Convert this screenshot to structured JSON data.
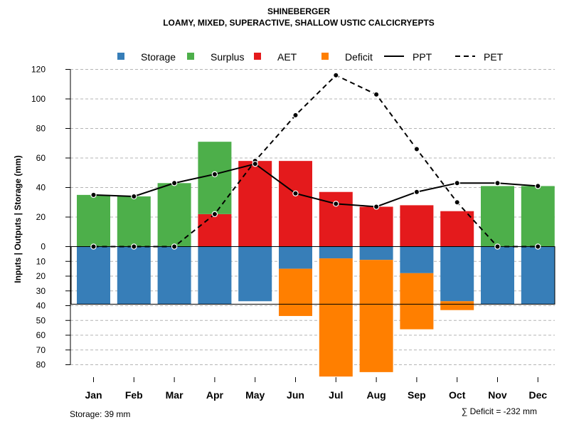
{
  "chart_data": {
    "type": "bar",
    "title": "SHINEBERGER",
    "subtitle": "LOAMY, MIXED, SUPERACTIVE, SHALLOW USTIC CALCICRYEPTS",
    "ylabel": "Inputs | Outputs | Storage    (mm)",
    "ylim": [
      -88,
      120
    ],
    "y_ticks_above": [
      0,
      20,
      40,
      60,
      80,
      100,
      120
    ],
    "y_ticks_below": [
      10,
      20,
      30,
      40,
      50,
      60,
      70,
      80
    ],
    "categories": [
      "Jan",
      "Feb",
      "Mar",
      "Apr",
      "May",
      "Jun",
      "Jul",
      "Aug",
      "Sep",
      "Oct",
      "Nov",
      "Dec"
    ],
    "legend": [
      {
        "label": "Storage",
        "color": "#377eb8",
        "kind": "box"
      },
      {
        "label": "Surplus",
        "color": "#4daf4a",
        "kind": "box"
      },
      {
        "label": "AET",
        "color": "#e41a1c",
        "kind": "box"
      },
      {
        "label": "Deficit",
        "color": "#ff7f00",
        "kind": "box"
      },
      {
        "label": "PPT",
        "color": "#000000",
        "kind": "solid"
      },
      {
        "label": "PET",
        "color": "#000000",
        "kind": "dashed"
      }
    ],
    "series": [
      {
        "name": "Surplus",
        "color": "#4daf4a",
        "values": [
          35,
          34,
          43,
          49,
          0,
          0,
          0,
          0,
          0,
          0,
          41,
          41
        ]
      },
      {
        "name": "AET",
        "color": "#e41a1c",
        "values": [
          0,
          0,
          0,
          22,
          58,
          58,
          37,
          27,
          28,
          24,
          0,
          0
        ]
      },
      {
        "name": "Storage",
        "color": "#377eb8",
        "values": [
          39,
          39,
          39,
          39,
          37,
          15,
          8,
          9,
          18,
          37,
          39,
          39
        ]
      },
      {
        "name": "Deficit",
        "color": "#ff7f00",
        "values": [
          0,
          0,
          0,
          0,
          0,
          32,
          80,
          76,
          38,
          6,
          0,
          0
        ]
      },
      {
        "name": "PPT",
        "color": "#000000",
        "values": [
          35,
          34,
          43,
          49,
          56,
          36,
          29,
          27,
          37,
          43,
          43,
          41
        ]
      },
      {
        "name": "PET",
        "color": "#000000",
        "values": [
          0,
          0,
          0,
          22,
          58,
          89,
          116,
          103,
          66,
          30,
          0,
          0
        ]
      }
    ],
    "storage_capacity": 39,
    "footer_left": "Storage: 39 mm",
    "footer_right": "∑ Deficit = -232 mm"
  }
}
